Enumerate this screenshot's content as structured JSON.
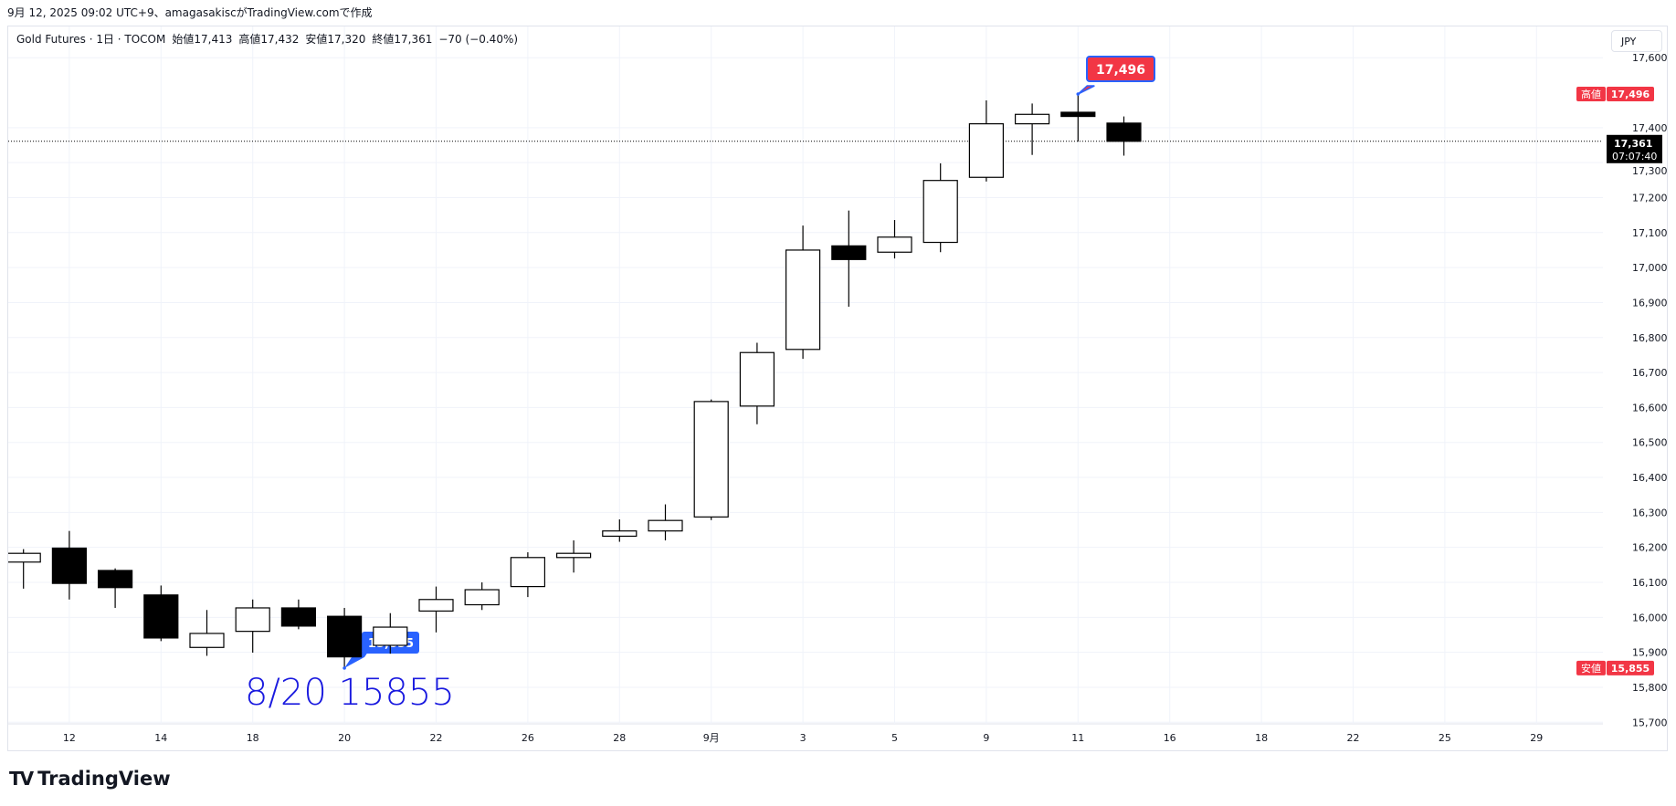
{
  "caption": "9月 12, 2025 09:02 UTC+9、amagasakiscがTradingView.comで作成",
  "legend": {
    "symbol": "Gold Futures · 1日 · TOCOM",
    "open": "始値17,413",
    "high": "高値17,432",
    "low": "安値17,320",
    "close": "終値17,361",
    "change": "−70 (−0.40%)"
  },
  "currency_button": "JPY",
  "logo_text": "TradingView",
  "colors": {
    "up_body": "#ffffff",
    "down_body": "#000000",
    "wick": "#000000",
    "tag_red": "#f23645",
    "bubble_blue": "#2962ff",
    "annotation_blue": "#1a1adf",
    "grid": "#f0f3fa"
  },
  "chart_data": {
    "type": "candlestick",
    "ylim": [
      15650,
      17680
    ],
    "yticks": [
      15700,
      15800,
      15900,
      16000,
      16100,
      16200,
      16300,
      16400,
      16500,
      16600,
      16700,
      16800,
      16900,
      17000,
      17100,
      17200,
      17300,
      17400,
      17600
    ],
    "ytick_labels": [
      "15,700",
      "15,800",
      "15,900",
      "16,000",
      "16,100",
      "16,200",
      "16,300",
      "16,400",
      "16,500",
      "16,600",
      "16,700",
      "16,800",
      "16,900",
      "17,000",
      "17,100",
      "17,200",
      "17,300",
      "17,400",
      "17,600"
    ],
    "xtick_labels": [
      {
        "label": "12",
        "bar": 1
      },
      {
        "label": "14",
        "bar": 3
      },
      {
        "label": "18",
        "bar": 5
      },
      {
        "label": "20",
        "bar": 7
      },
      {
        "label": "22",
        "bar": 9
      },
      {
        "label": "26",
        "bar": 11
      },
      {
        "label": "28",
        "bar": 13
      },
      {
        "label": "9月",
        "bar": 15
      },
      {
        "label": "3",
        "bar": 17
      },
      {
        "label": "5",
        "bar": 19
      },
      {
        "label": "9",
        "bar": 21
      },
      {
        "label": "11",
        "bar": 23
      },
      {
        "label": "16",
        "bar": 25
      },
      {
        "label": "18",
        "bar": 27
      },
      {
        "label": "22",
        "bar": 29
      },
      {
        "label": "25",
        "bar": 31
      },
      {
        "label": "29",
        "bar": 33
      }
    ],
    "candles": [
      {
        "date": "8/11",
        "o": 16158,
        "h": 16195,
        "l": 16082,
        "c": 16183
      },
      {
        "date": "8/12",
        "o": 16198,
        "h": 16247,
        "l": 16051,
        "c": 16097
      },
      {
        "date": "8/13",
        "o": 16134,
        "h": 16140,
        "l": 16027,
        "c": 16085
      },
      {
        "date": "8/14",
        "o": 16064,
        "h": 16091,
        "l": 15932,
        "c": 15941
      },
      {
        "date": "8/15",
        "o": 15914,
        "h": 16021,
        "l": 15890,
        "c": 15954
      },
      {
        "date": "8/18",
        "o": 15960,
        "h": 16051,
        "l": 15899,
        "c": 16027
      },
      {
        "date": "8/19",
        "o": 16027,
        "h": 16051,
        "l": 15966,
        "c": 15975
      },
      {
        "date": "8/20",
        "o": 16003,
        "h": 16027,
        "l": 15855,
        "c": 15887
      },
      {
        "date": "8/21",
        "o": 15920,
        "h": 16012,
        "l": 15896,
        "c": 15972
      },
      {
        "date": "8/22",
        "o": 16018,
        "h": 16088,
        "l": 15957,
        "c": 16051
      },
      {
        "date": "8/25",
        "o": 16036,
        "h": 16100,
        "l": 16021,
        "c": 16079
      },
      {
        "date": "8/26",
        "o": 16088,
        "h": 16186,
        "l": 16058,
        "c": 16171
      },
      {
        "date": "8/27",
        "o": 16171,
        "h": 16220,
        "l": 16128,
        "c": 16183
      },
      {
        "date": "8/28",
        "o": 16232,
        "h": 16280,
        "l": 16216,
        "c": 16247
      },
      {
        "date": "8/29",
        "o": 16247,
        "h": 16323,
        "l": 16220,
        "c": 16277
      },
      {
        "date": "9/1",
        "o": 16287,
        "h": 16623,
        "l": 16278,
        "c": 16617
      },
      {
        "date": "9/2",
        "o": 16604,
        "h": 16785,
        "l": 16552,
        "c": 16757
      },
      {
        "date": "9/3",
        "o": 16766,
        "h": 17120,
        "l": 16739,
        "c": 17050
      },
      {
        "date": "9/4",
        "o": 17062,
        "h": 17163,
        "l": 16888,
        "c": 17023
      },
      {
        "date": "9/5",
        "o": 17044,
        "h": 17136,
        "l": 17026,
        "c": 17087
      },
      {
        "date": "9/8",
        "o": 17072,
        "h": 17298,
        "l": 17044,
        "c": 17249
      },
      {
        "date": "9/9",
        "o": 17258,
        "h": 17478,
        "l": 17246,
        "c": 17411
      },
      {
        "date": "9/10",
        "o": 17411,
        "h": 17469,
        "l": 17322,
        "c": 17438
      },
      {
        "date": "9/11",
        "o": 17444,
        "h": 17496,
        "l": 17360,
        "c": 17432
      },
      {
        "date": "9/12",
        "o": 17413,
        "h": 17432,
        "l": 17320,
        "c": 17361
      }
    ],
    "last_price": {
      "value": 17361,
      "label": "17,361",
      "countdown": "07:07:40"
    },
    "high_marker": {
      "value": 17496,
      "bar": 23,
      "tag": "高値",
      "label": "17,496"
    },
    "low_marker": {
      "value": 15855,
      "bar": 7,
      "tag": "安値",
      "label": "15,855"
    },
    "annotation": "8/20 15855"
  }
}
